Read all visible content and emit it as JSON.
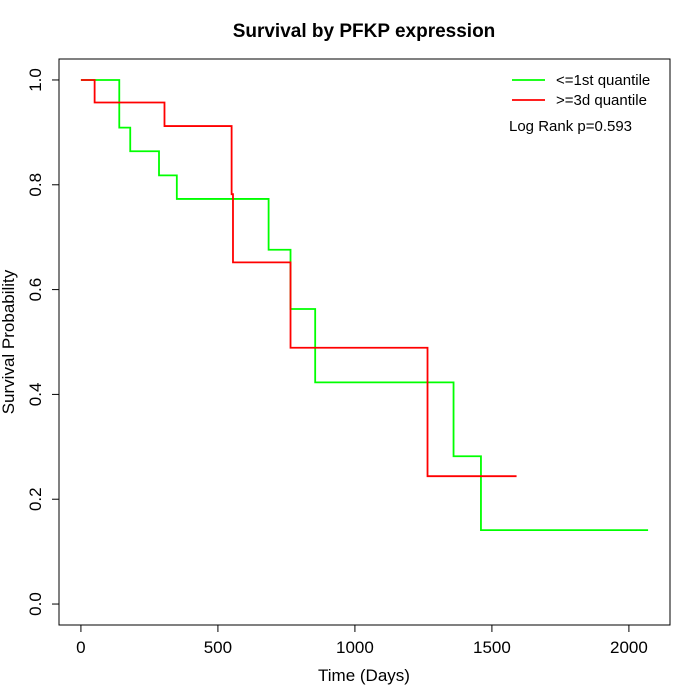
{
  "chart_data": {
    "type": "line",
    "title": "Survival by PFKP expression",
    "xlabel": "Time (Days)",
    "ylabel": "Survival Probability",
    "xlim": [
      -80,
      2150
    ],
    "ylim": [
      -0.04,
      1.04
    ],
    "xticks": [
      0,
      500,
      1000,
      1500,
      2000
    ],
    "yticks": [
      0.0,
      0.2,
      0.4,
      0.6,
      0.8,
      1.0
    ],
    "xtick_labels": [
      "0",
      "500",
      "1000",
      "1500",
      "2000"
    ],
    "ytick_labels": [
      "0.0",
      "0.2",
      "0.4",
      "0.6",
      "0.8",
      "1.0"
    ],
    "grid": false,
    "legend_position": "top-right",
    "series": [
      {
        "name": "<=1st quantile",
        "color": "#00ff00",
        "step": true,
        "x": [
          0,
          140,
          180,
          285,
          350,
          685,
          765,
          855,
          1360,
          1460,
          2070
        ],
        "y": [
          1.0,
          0.909,
          0.864,
          0.818,
          0.773,
          0.676,
          0.563,
          0.423,
          0.282,
          0.141,
          0.141
        ]
      },
      {
        "name": ">=3d quantile",
        "color": "#ff0000",
        "step": true,
        "x": [
          0,
          50,
          305,
          550,
          555,
          765,
          1265,
          1590
        ],
        "y": [
          1.0,
          0.957,
          0.912,
          0.782,
          0.652,
          0.489,
          0.244,
          0.244
        ]
      }
    ],
    "annotations": [
      "Log Rank p=0.593"
    ]
  }
}
